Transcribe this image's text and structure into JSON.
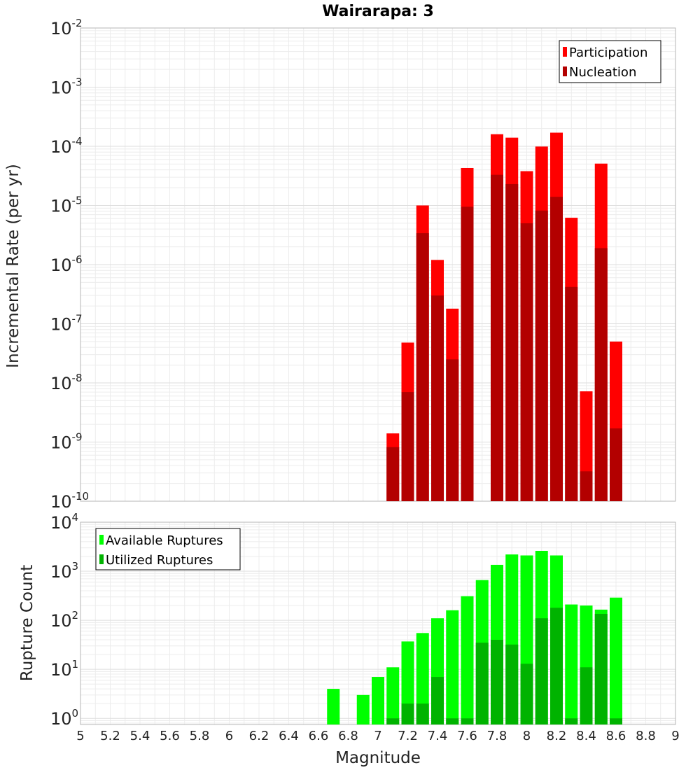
{
  "chart_data": [
    {
      "type": "bar",
      "title": "Wairarapa: 3",
      "xlabel": "",
      "ylabel": "Incremental Rate (per yr)",
      "yscale": "log",
      "xlim": [
        5,
        9
      ],
      "ylim": [
        1e-10,
        0.01
      ],
      "y_tick_exponents": [
        -10,
        -9,
        -8,
        -7,
        -6,
        -5,
        -4,
        -3,
        -2
      ],
      "legend": "top-right",
      "bar_overlay": true,
      "x": [
        7.1,
        7.2,
        7.3,
        7.4,
        7.5,
        7.6,
        7.8,
        7.9,
        8.0,
        8.1,
        8.2,
        8.3,
        8.4,
        8.5,
        8.6,
        8.7
      ],
      "series": [
        {
          "name": "Participation",
          "color": "#ff0000",
          "values": [
            1.4e-09,
            4.8e-08,
            1e-05,
            1.2e-06,
            1.8e-07,
            4.3e-05,
            0.00016,
            0.00014,
            3.8e-05,
            9.9e-05,
            0.00017,
            6.2e-06,
            7.2e-09,
            5.1e-05,
            5e-08,
            null
          ]
        },
        {
          "name": "Nucleation",
          "color": "#b30000",
          "values": [
            8.2e-10,
            7e-09,
            3.4e-06,
            3e-07,
            2.5e-08,
            9.5e-06,
            3.3e-05,
            2.3e-05,
            5e-06,
            8.2e-06,
            1.4e-05,
            4.2e-07,
            3.2e-10,
            1.9e-06,
            1.7e-09,
            null
          ]
        }
      ]
    },
    {
      "type": "bar",
      "title": "",
      "xlabel": "Magnitude",
      "ylabel": "Rupture Count",
      "yscale": "log",
      "xlim": [
        5,
        9
      ],
      "ylim": [
        0.75,
        10000.0
      ],
      "y_tick_exponents": [
        0,
        1,
        2,
        3,
        4
      ],
      "x_ticks": [
        "5",
        "5.2",
        "5.4",
        "5.6",
        "5.8",
        "6",
        "6.2",
        "6.4",
        "6.6",
        "6.8",
        "7",
        "7.2",
        "7.4",
        "7.6",
        "7.8",
        "8",
        "8.2",
        "8.4",
        "8.6",
        "8.8",
        "9"
      ],
      "legend": "top-left",
      "bar_overlay": true,
      "x": [
        6.7,
        6.9,
        7.0,
        7.1,
        7.2,
        7.3,
        7.4,
        7.5,
        7.6,
        7.7,
        7.8,
        7.9,
        8.0,
        8.1,
        8.2,
        8.3,
        8.4,
        8.5,
        8.6
      ],
      "series": [
        {
          "name": "Available Ruptures",
          "color": "#00ff00",
          "values": [
            4,
            3,
            7,
            11,
            37,
            55,
            110,
            160,
            310,
            660,
            1350,
            2200,
            2100,
            2600,
            2100,
            210,
            200,
            165,
            290
          ]
        },
        {
          "name": "Utilized Ruptures",
          "color": "#00b300",
          "values": [
            null,
            null,
            null,
            1,
            2,
            2,
            7,
            1,
            1,
            35,
            40,
            32,
            13,
            110,
            180,
            1,
            11,
            135,
            1
          ]
        }
      ]
    }
  ]
}
